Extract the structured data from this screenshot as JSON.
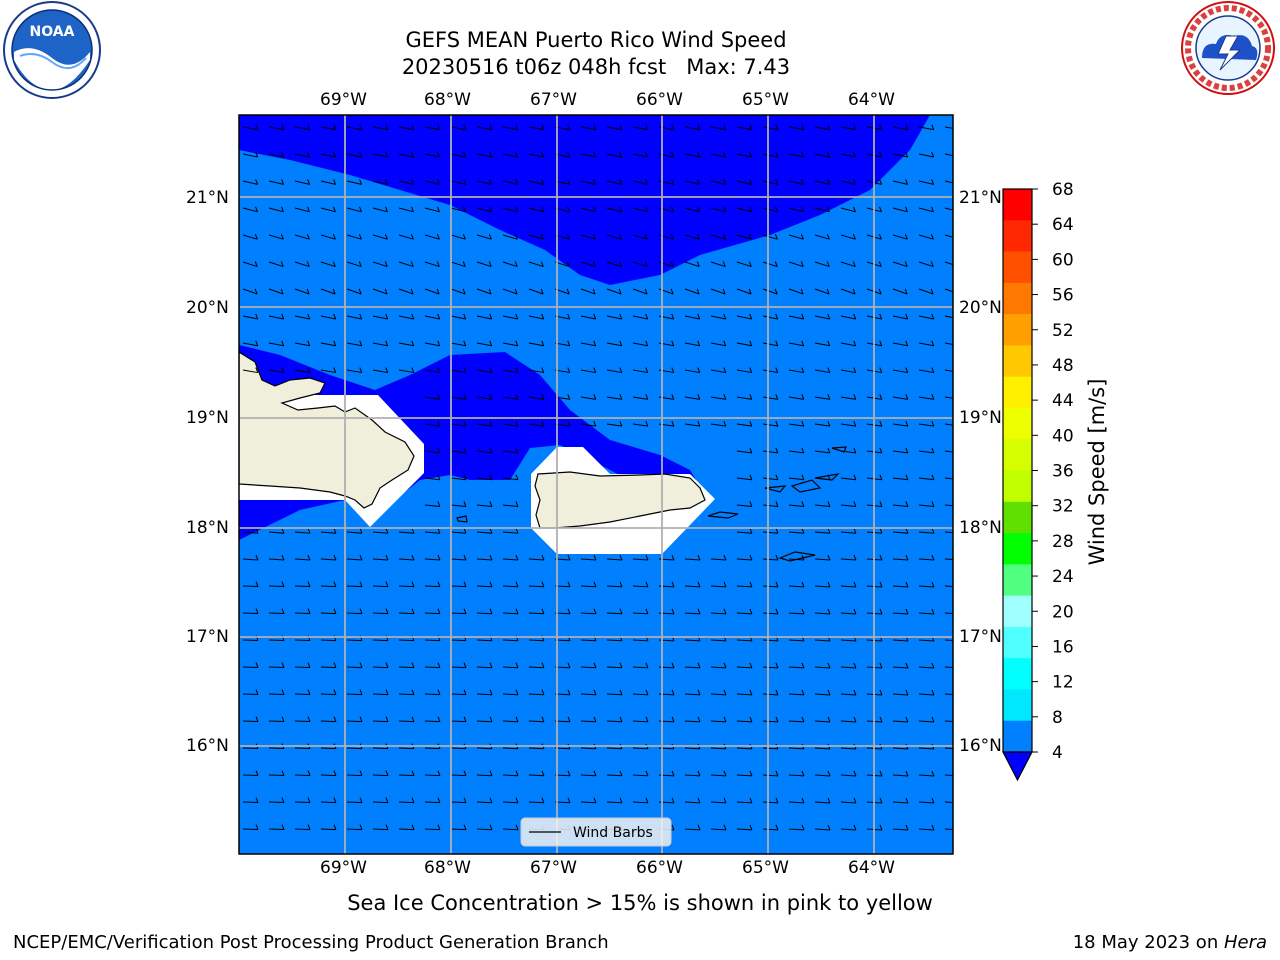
{
  "title": {
    "line1": "GEFS MEAN Puerto Rico Wind Speed",
    "line2": "20230516 t06z 048h fcst   Max: 7.43"
  },
  "logos": {
    "left": {
      "name": "noaa-logo",
      "text": "NOAA",
      "ring_text": "NATIONAL OCEANIC AND ATMOSPHERIC ADMINISTRATION · U.S. DEPARTMENT OF COMMERCE"
    },
    "right": {
      "name": "nws-logo",
      "ring_text": "NATIONAL WEATHER SERVICE"
    }
  },
  "map": {
    "lon_labels": [
      "69°W",
      "68°W",
      "67°W",
      "66°W",
      "65°W",
      "64°W"
    ],
    "lat_labels": [
      "21°N",
      "20°N",
      "19°N",
      "18°N",
      "17°N",
      "16°N"
    ],
    "legend_label": "Wind Barbs",
    "colors": {
      "ocean_low": "#0080ff",
      "ocean_high": "#0000ff",
      "land": "#efefdb",
      "gridline": "#b0b0b0"
    }
  },
  "colorbar": {
    "label": "Wind Speed [m/s]",
    "ticks": [
      "68",
      "64",
      "60",
      "56",
      "52",
      "48",
      "44",
      "40",
      "36",
      "32",
      "28",
      "24",
      "20",
      "16",
      "12",
      "8",
      "4"
    ],
    "colors": [
      "#ff0000",
      "#ff2800",
      "#ff5000",
      "#ff7800",
      "#ffa000",
      "#ffc800",
      "#fff000",
      "#eeff00",
      "#d5ff00",
      "#c0ff00",
      "#60e000",
      "#00ff00",
      "#50ff80",
      "#a0ffff",
      "#50ffff",
      "#00ffff",
      "#00e8ff",
      "#0080ff"
    ],
    "under_color": "#0000ff"
  },
  "notes": {
    "sea_ice": "Sea Ice Concentration > 15% is shown in pink to yellow"
  },
  "footer": {
    "left": "NCEP/EMC/Verification Post Processing Product Generation Branch",
    "right_date": "18 May 2023 on ",
    "right_host": "Hera"
  }
}
